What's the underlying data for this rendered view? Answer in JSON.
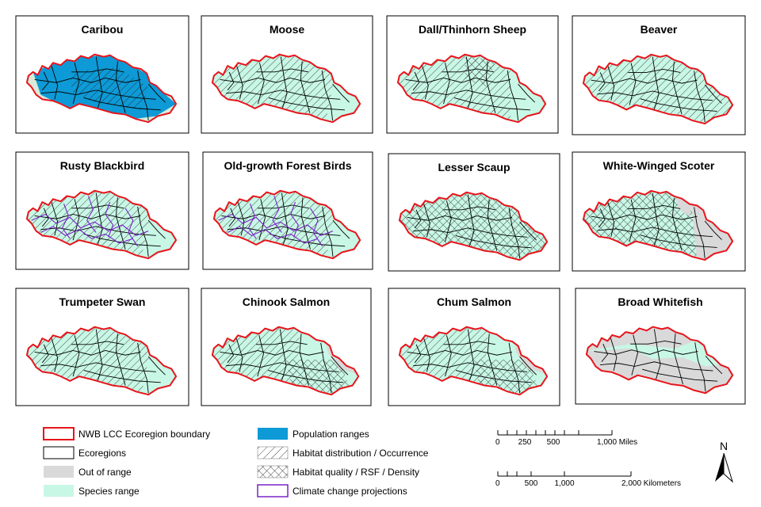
{
  "colors": {
    "boundary": "#e8141b",
    "ecoregion": "#000000",
    "out_of_range": "#d9d9d9",
    "species_range": "#c8f7e6",
    "population_ranges": "#0e9ad6",
    "climate": "#7b22c8"
  },
  "panels": [
    {
      "title": "Caribou",
      "style": "caribou"
    },
    {
      "title": "Moose",
      "style": "diag"
    },
    {
      "title": "Dall/Thinhorn Sheep",
      "style": "sheep"
    },
    {
      "title": "Beaver",
      "style": "beaver"
    },
    {
      "title": "Rusty Blackbird",
      "style": "climate"
    },
    {
      "title": "Old-growth Forest Birds",
      "style": "climate"
    },
    {
      "title": "Lesser Scaup",
      "style": "cross"
    },
    {
      "title": "White-Winged Scoter",
      "style": "scoter"
    },
    {
      "title": "Trumpeter Swan",
      "style": "diag"
    },
    {
      "title": "Chinook Salmon",
      "style": "salmon"
    },
    {
      "title": "Chum Salmon",
      "style": "salmon"
    },
    {
      "title": "Broad Whitefish",
      "style": "whitefish"
    }
  ],
  "legend": {
    "col1": [
      {
        "label": "NWB LCC Ecoregion boundary",
        "symbol": "boundary"
      },
      {
        "label": "Ecoregions",
        "symbol": "ecoregion"
      },
      {
        "label": "Out of range",
        "symbol": "out_of_range"
      },
      {
        "label": "Species range",
        "symbol": "species_range"
      }
    ],
    "col2": [
      {
        "label": "Population ranges",
        "symbol": "population"
      },
      {
        "label": "Habitat distribution / Occurrence",
        "symbol": "diag"
      },
      {
        "label": "Habitat quality / RSF / Density",
        "symbol": "cross"
      },
      {
        "label": "Climate change projections",
        "symbol": "climate"
      }
    ]
  },
  "scalebars": {
    "miles": {
      "ticks": [
        "0",
        "250",
        "500",
        "1,000 Miles"
      ]
    },
    "km": {
      "ticks": [
        "0",
        "500",
        "1,000",
        "2,000 Kilometers"
      ]
    }
  },
  "north": {
    "label": "N"
  }
}
